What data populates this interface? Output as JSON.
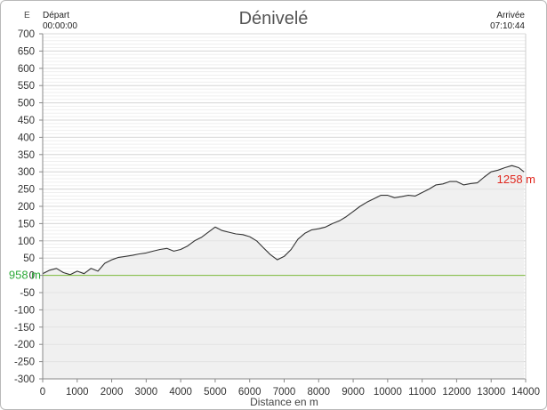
{
  "chart_data": {
    "type": "area",
    "title": "Dénivelé",
    "ylabel": "E",
    "xlabel": "Distance en m",
    "start": {
      "label": "Départ",
      "time": "00:00:00"
    },
    "end": {
      "label": "Arrivée",
      "time": "07:10:44"
    },
    "ylim": [
      -300,
      700
    ],
    "xlim": [
      0,
      14000
    ],
    "y_ticks": [
      700,
      650,
      600,
      550,
      500,
      450,
      400,
      350,
      300,
      250,
      200,
      150,
      100,
      50,
      0,
      -50,
      -100,
      -150,
      -200,
      -250,
      -300
    ],
    "x_ticks": [
      0,
      1000,
      2000,
      3000,
      4000,
      5000,
      6000,
      7000,
      8000,
      9000,
      10000,
      11000,
      12000,
      13000,
      14000
    ],
    "grid": true,
    "reference_line": {
      "y": 0,
      "label": "958 m",
      "color": "#7dbb3a",
      "label_color": "#2eaa3a"
    },
    "end_label": {
      "text": "1258 m",
      "color": "#e0281f"
    },
    "series": [
      {
        "color": "#333333",
        "fill": "#f0f0f0",
        "x": [
          0,
          200,
          400,
          600,
          800,
          1000,
          1200,
          1400,
          1600,
          1800,
          2000,
          2200,
          2400,
          2600,
          2800,
          3000,
          3200,
          3400,
          3600,
          3800,
          4000,
          4200,
          4400,
          4600,
          4800,
          5000,
          5200,
          5400,
          5600,
          5800,
          6000,
          6200,
          6400,
          6600,
          6800,
          7000,
          7200,
          7400,
          7600,
          7800,
          8000,
          8200,
          8400,
          8600,
          8800,
          9000,
          9200,
          9400,
          9600,
          9800,
          10000,
          10200,
          10400,
          10600,
          10800,
          11000,
          11200,
          11400,
          11600,
          11800,
          12000,
          12200,
          12400,
          12600,
          12800,
          13000,
          13200,
          13400,
          13600,
          13800,
          13950
        ],
        "values": [
          5,
          15,
          20,
          8,
          2,
          12,
          5,
          20,
          12,
          35,
          45,
          52,
          55,
          58,
          62,
          65,
          70,
          75,
          78,
          70,
          75,
          85,
          100,
          110,
          125,
          140,
          130,
          125,
          120,
          118,
          112,
          100,
          80,
          60,
          45,
          55,
          75,
          105,
          122,
          132,
          135,
          140,
          150,
          158,
          170,
          185,
          200,
          212,
          222,
          232,
          232,
          225,
          228,
          232,
          230,
          240,
          250,
          262,
          265,
          272,
          272,
          262,
          266,
          268,
          285,
          300,
          305,
          312,
          318,
          312,
          300
        ]
      }
    ]
  }
}
